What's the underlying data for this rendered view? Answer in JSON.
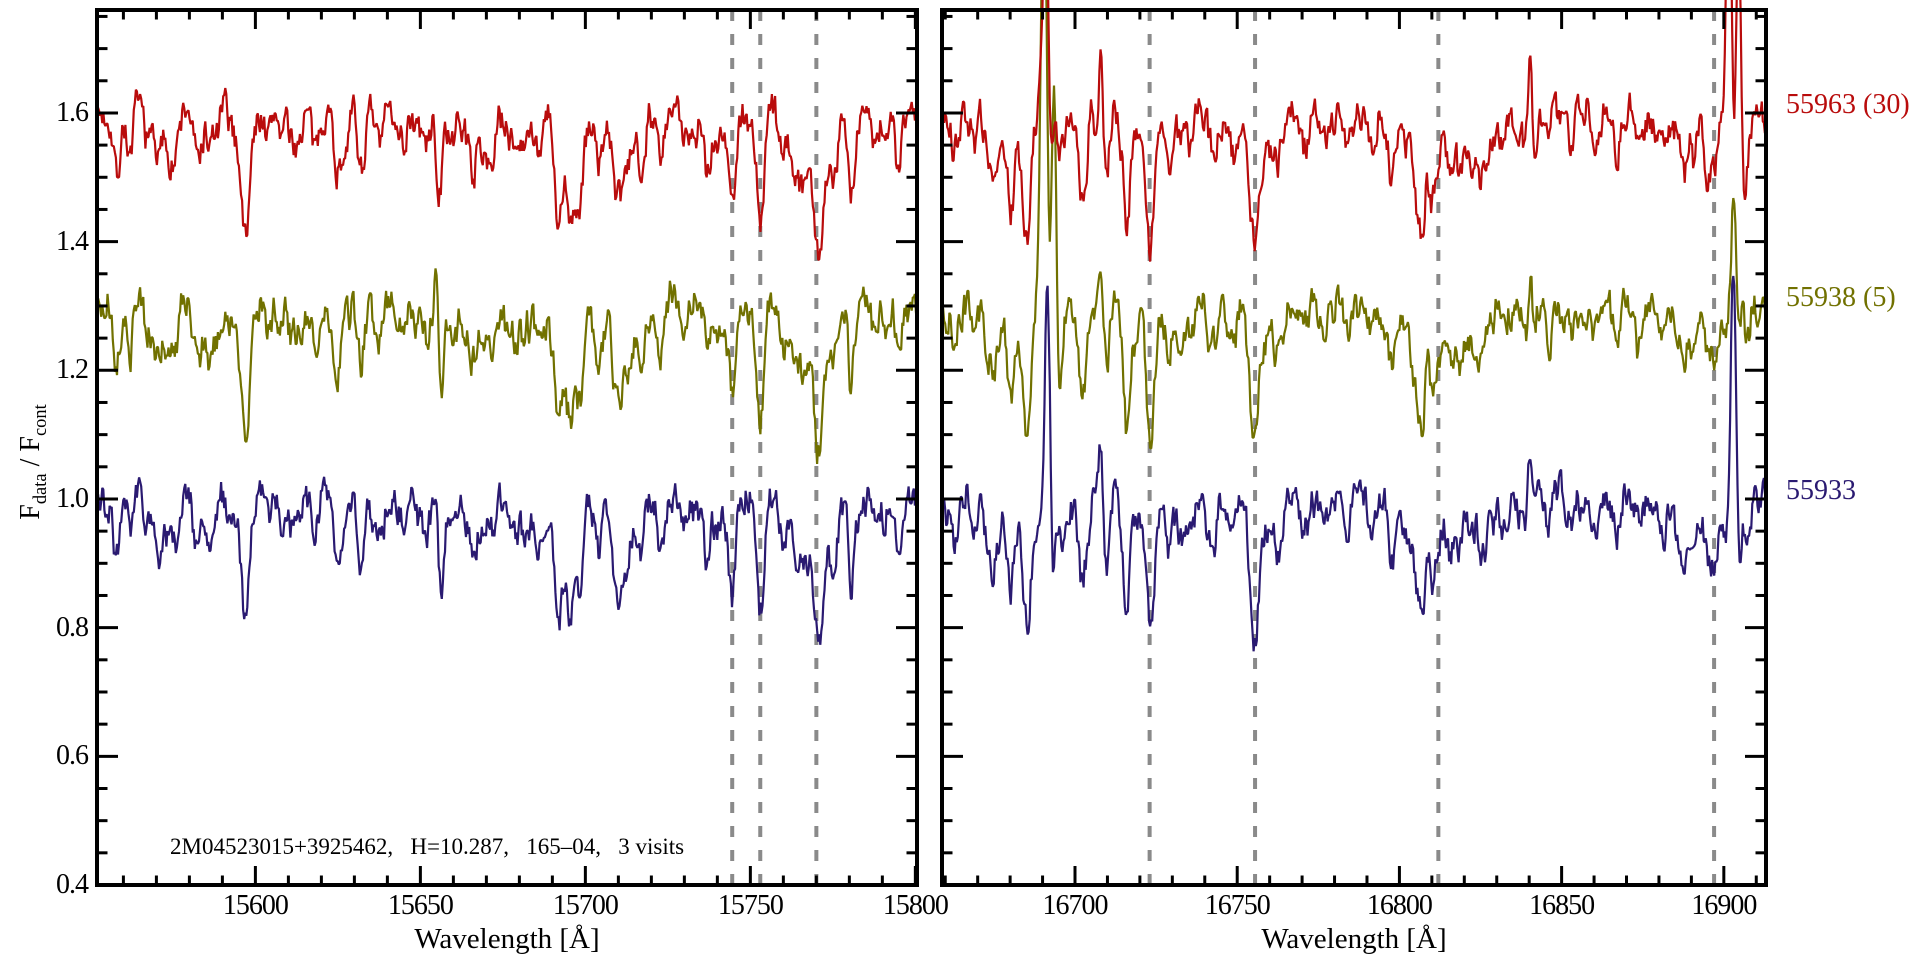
{
  "figure": {
    "annotation": "2M04523015+3925462,   H=10.287,   165–04,   3 visits",
    "background": "#ffffff"
  },
  "chart_data": {
    "type": "line",
    "title": "",
    "ylabel": "F_data / F_cont",
    "ylabel_parts": {
      "base1": "F",
      "sub1": "data",
      "divider": " / ",
      "base2": "F",
      "sub2": "cont"
    },
    "ylim": [
      0.4,
      1.76
    ],
    "yticks": [
      "0.4",
      "0.6",
      "0.8",
      "1.0",
      "1.2",
      "1.4",
      "1.6"
    ],
    "ytick_values": [
      0.4,
      0.6,
      0.8,
      1.0,
      1.2,
      1.4,
      1.6
    ],
    "y_minor_step": 0.05,
    "grid": false,
    "axis_color": "#000000",
    "dashed_line_color": "#8a8a8a",
    "panels": [
      {
        "xlabel": "Wavelength [Å]",
        "xlim": [
          15552,
          15800.5
        ],
        "xticks": [
          15600,
          15650,
          15700,
          15750,
          15800
        ],
        "x_minor_step": 10,
        "dashed_lines": [
          15744.5,
          15753,
          15770
        ],
        "absorption_lines": [
          [
            15558,
            0.09,
            1.0
          ],
          [
            15562,
            0.07,
            0.9
          ],
          [
            15570,
            0.05,
            0.9
          ],
          [
            15576,
            0.04,
            0.8
          ],
          [
            15582,
            0.06,
            1.0
          ],
          [
            15588,
            0.05,
            0.9
          ],
          [
            15597,
            0.15,
            1.2
          ],
          [
            15604,
            0.04,
            0.8
          ],
          [
            15611,
            0.05,
            0.9
          ],
          [
            15618,
            0.07,
            1.0
          ],
          [
            15625,
            0.09,
            1.1
          ],
          [
            15632,
            0.09,
            1.1
          ],
          [
            15638,
            0.05,
            0.9
          ],
          [
            15645,
            0.04,
            0.8
          ],
          [
            15652,
            0.05,
            0.8
          ],
          [
            15660,
            0.05,
            0.9
          ],
          [
            15666,
            0.08,
            1.0
          ],
          [
            15672,
            0.05,
            0.9
          ],
          [
            15679,
            0.04,
            0.8
          ],
          [
            15686,
            0.06,
            1.0
          ],
          [
            15692,
            0.08,
            1.4
          ],
          [
            15697,
            0.13,
            2.0
          ],
          [
            15704,
            0.05,
            0.9
          ],
          [
            15711,
            0.04,
            0.8
          ],
          [
            15717,
            0.06,
            0.9
          ],
          [
            15723,
            0.07,
            1.0
          ],
          [
            15730,
            0.04,
            0.9
          ],
          [
            15737,
            0.05,
            0.9
          ],
          [
            15744.5,
            0.13,
            1.0
          ],
          [
            15753,
            0.17,
            1.1
          ],
          [
            15760,
            0.06,
            0.9
          ],
          [
            15766,
            0.1,
            1.3
          ],
          [
            15770.5,
            0.2,
            1.6
          ],
          [
            15775,
            0.09,
            1.3
          ],
          [
            15781,
            0.05,
            0.9
          ],
          [
            15788,
            0.06,
            1.0
          ],
          [
            15795,
            0.05,
            0.9
          ]
        ]
      },
      {
        "xlabel": "Wavelength [Å]",
        "xlim": [
          16659,
          16913
        ],
        "xticks": [
          16700,
          16750,
          16800,
          16850,
          16900
        ],
        "x_minor_step": 10,
        "dashed_lines": [
          16723,
          16755.5,
          16812,
          16897
        ],
        "absorption_lines": [
          [
            16663,
            0.06,
            0.9
          ],
          [
            16669,
            0.05,
            0.9
          ],
          [
            16675,
            0.09,
            1.1
          ],
          [
            16680,
            0.12,
            1.1
          ],
          [
            16685,
            0.13,
            1.2
          ],
          [
            16696,
            0.05,
            0.9
          ],
          [
            16702,
            0.05,
            0.9
          ],
          [
            16709,
            0.04,
            0.8
          ],
          [
            16716,
            0.06,
            0.9
          ],
          [
            16723,
            0.16,
            1.2
          ],
          [
            16729,
            0.06,
            0.9
          ],
          [
            16736,
            0.05,
            0.9
          ],
          [
            16743,
            0.04,
            0.8
          ],
          [
            16749,
            0.05,
            0.9
          ],
          [
            16755.5,
            0.21,
            1.3
          ],
          [
            16763,
            0.06,
            0.9
          ],
          [
            16770,
            0.05,
            0.9
          ],
          [
            16777,
            0.04,
            0.8
          ],
          [
            16784,
            0.05,
            0.9
          ],
          [
            16791,
            0.04,
            0.8
          ],
          [
            16798,
            0.05,
            0.9
          ],
          [
            16805,
            0.05,
            1.2
          ],
          [
            16810,
            0.06,
            5.0
          ],
          [
            16818,
            0.04,
            0.9
          ],
          [
            16825,
            0.05,
            0.9
          ],
          [
            16832,
            0.04,
            0.8
          ],
          [
            16846,
            0.05,
            0.9
          ],
          [
            16853,
            0.05,
            0.9
          ],
          [
            16860,
            0.06,
            1.0
          ],
          [
            16867,
            0.05,
            0.9
          ],
          [
            16874,
            0.04,
            0.8
          ],
          [
            16881,
            0.05,
            0.9
          ],
          [
            16888,
            0.05,
            0.9
          ],
          [
            16895,
            0.06,
            0.9
          ],
          [
            16907,
            0.05,
            0.9
          ]
        ]
      }
    ],
    "series": [
      {
        "label": "55963 (30)",
        "color": "#b90c0c",
        "offset": 1.6,
        "emission_lines": [
          [
            16691,
            0.3,
            0.9
          ],
          [
            16705,
            0.05,
            0.5
          ],
          [
            16708,
            0.1,
            0.6
          ],
          [
            16840,
            0.13,
            0.7
          ],
          [
            16901.5,
            0.45,
            0.9
          ],
          [
            16904.5,
            0.3,
            0.7
          ]
        ]
      },
      {
        "label": "55938 (5)",
        "color": "#717100",
        "offset": 1.3,
        "emission_lines": [
          [
            15655,
            0.15,
            0.55
          ],
          [
            16690.5,
            0.7,
            1.0
          ],
          [
            16693.5,
            0.4,
            0.7
          ],
          [
            16708,
            0.09,
            0.6
          ],
          [
            16840,
            0.08,
            0.6
          ],
          [
            16903,
            0.16,
            0.7
          ]
        ]
      },
      {
        "label": "55933",
        "color": "#2a1a71",
        "offset": 1.0,
        "emission_lines": [
          [
            15655,
            0.08,
            0.5
          ],
          [
            16691.5,
            0.32,
            0.8
          ],
          [
            16708,
            0.1,
            0.6
          ],
          [
            16840,
            0.08,
            0.6
          ],
          [
            16903,
            0.36,
            0.8
          ]
        ]
      }
    ],
    "noise": {
      "amplitude": 0.013,
      "seed": 7
    },
    "line_forest": {
      "count": 80,
      "max_extra_depth": 0.05,
      "seed": 11
    },
    "legend_position": "right-outside"
  }
}
